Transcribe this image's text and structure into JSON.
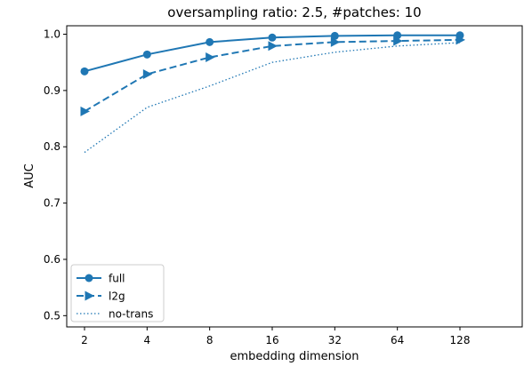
{
  "chart_data": {
    "type": "line",
    "title": "oversampling ratio: 2.5, #patches: 10",
    "xlabel": "embedding dimension",
    "ylabel": "AUC",
    "categories": [
      "2",
      "4",
      "8",
      "16",
      "32",
      "64",
      "128"
    ],
    "ylim": [
      0.48,
      1.015
    ],
    "yticks": [
      "0.5",
      "0.6",
      "0.7",
      "0.8",
      "0.9",
      "1.0"
    ],
    "ytick_values": [
      0.5,
      0.6,
      0.7,
      0.8,
      0.9,
      1.0
    ],
    "grid": false,
    "legend_position": "bottom-left",
    "color": "#1f77b4",
    "series": [
      {
        "name": "full",
        "marker": "circle",
        "linestyle": "solid",
        "values": [
          0.934,
          0.964,
          0.986,
          0.994,
          0.997,
          0.998,
          0.998
        ]
      },
      {
        "name": "l2g",
        "marker": "triangle-right",
        "linestyle": "dashed",
        "values": [
          0.863,
          0.929,
          0.959,
          0.979,
          0.986,
          0.988,
          0.99
        ]
      },
      {
        "name": "no-trans",
        "marker": "none",
        "linestyle": "dotted",
        "values": [
          0.79,
          0.87,
          0.908,
          0.95,
          0.968,
          0.979,
          0.985
        ]
      }
    ]
  }
}
